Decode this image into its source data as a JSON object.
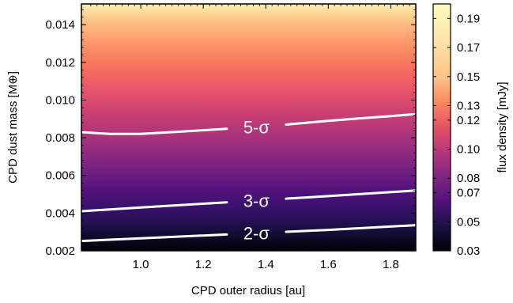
{
  "chart_data": {
    "type": "heatmap",
    "title": "",
    "xlabel": "CPD outer radius [au]",
    "ylabel": "CPD dust mass [M⊕]",
    "colorbar_label": "flux density [mJy]",
    "colormap": "magma",
    "xlim": [
      0.81,
      1.88
    ],
    "ylim": [
      0.002,
      0.0151
    ],
    "x_ticks": [
      1.0,
      1.2,
      1.4,
      1.6,
      1.8
    ],
    "x_tick_labels": [
      "1.0",
      "1.2",
      "1.4",
      "1.6",
      "1.8"
    ],
    "y_ticks": [
      0.002,
      0.004,
      0.006,
      0.008,
      0.01,
      0.012,
      0.014
    ],
    "y_tick_labels": [
      "0.002",
      "0.004",
      "0.006",
      "0.008",
      "0.010",
      "0.012",
      "0.014"
    ],
    "colorbar_range": [
      0.03,
      0.2
    ],
    "colorbar_ticks": [
      0.03,
      0.05,
      0.07,
      0.08,
      0.1,
      0.12,
      0.13,
      0.15,
      0.17,
      0.19
    ],
    "colorbar_tick_labels": [
      "0.03",
      "0.05",
      "0.07",
      "0.08",
      "0.10",
      "0.12",
      "0.13",
      "0.15",
      "0.17",
      "0.19"
    ],
    "contours": [
      {
        "label": "5-σ",
        "label_x": 1.37,
        "x": [
          0.81,
          0.9,
          1.0,
          1.1,
          1.2,
          1.3,
          1.4,
          1.5,
          1.6,
          1.7,
          1.8,
          1.88
        ],
        "y": [
          0.0083,
          0.0082,
          0.0082,
          0.0083,
          0.0084,
          0.0085,
          0.0086,
          0.00875,
          0.0089,
          0.00903,
          0.00915,
          0.00925
        ]
      },
      {
        "label": "3-σ",
        "label_x": 1.37,
        "x": [
          0.81,
          1.0,
          1.2,
          1.4,
          1.6,
          1.88
        ],
        "y": [
          0.0041,
          0.0043,
          0.0045,
          0.0047,
          0.0049,
          0.0052
        ]
      },
      {
        "label": "2-σ",
        "label_x": 1.37,
        "x": [
          0.81,
          1.0,
          1.2,
          1.4,
          1.6,
          1.88
        ],
        "y": [
          0.00252,
          0.00266,
          0.00281,
          0.00296,
          0.00311,
          0.00336
        ]
      }
    ],
    "grid": false
  }
}
